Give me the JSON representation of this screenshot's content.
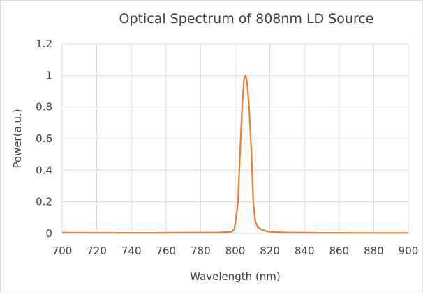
{
  "chart_data": {
    "type": "line",
    "title": "Optical Spectrum of 808nm  LD Source",
    "xlabel": "Wavelength (nm)",
    "ylabel": "Power(a.u.)",
    "xlim": [
      700,
      900
    ],
    "ylim": [
      0,
      1.2
    ],
    "xticks": [
      "700",
      "720",
      "740",
      "760",
      "780",
      "800",
      "820",
      "840",
      "860",
      "880",
      "900"
    ],
    "yticks": [
      "0",
      "0.2",
      "0.4",
      "0.6",
      "0.8",
      "1",
      "1.2"
    ],
    "grid": true,
    "series": [
      {
        "color": "#ED7D31",
        "x": [
          700,
          750,
          790,
          798,
          799.5,
          800.5,
          801.6,
          802.7,
          804,
          805,
          805.9,
          806.8,
          808,
          809.4,
          810.4,
          811.5,
          813,
          815,
          818,
          820,
          830,
          850,
          900
        ],
        "y": [
          0.005,
          0.004,
          0.006,
          0.01,
          0.03,
          0.1,
          0.2,
          0.5,
          0.8,
          0.97,
          1.0,
          0.96,
          0.8,
          0.5,
          0.2,
          0.08,
          0.04,
          0.026,
          0.014,
          0.01,
          0.006,
          0.004,
          0.003
        ]
      }
    ]
  }
}
